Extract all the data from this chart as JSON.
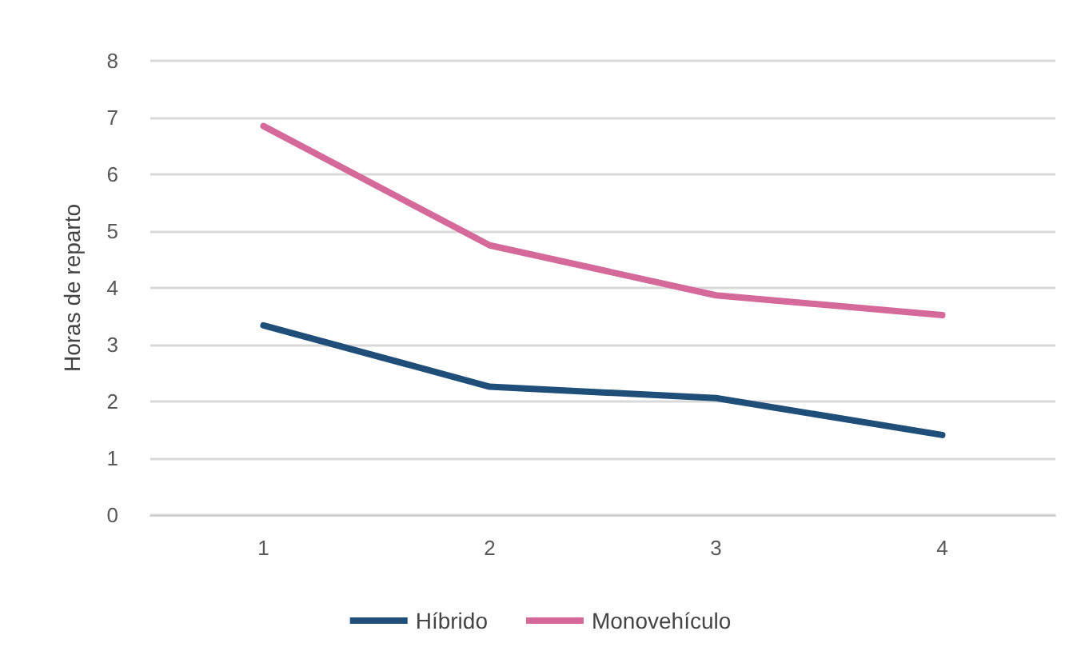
{
  "chart_data": {
    "type": "line",
    "ylabel": "Horas de reparto",
    "categories": [
      "1",
      "2",
      "3",
      "4"
    ],
    "series": [
      {
        "name": "Híbrido",
        "color": "#1f4e79",
        "values": [
          3.34,
          2.26,
          2.06,
          1.41
        ]
      },
      {
        "name": "Monovehículo",
        "color": "#d4699a",
        "values": [
          6.85,
          4.75,
          3.87,
          3.52
        ]
      }
    ],
    "ylim": [
      0,
      8
    ],
    "yticks": [
      0,
      1,
      2,
      3,
      4,
      5,
      6,
      7,
      8
    ],
    "grid": "y",
    "legend": "bottom",
    "marker": "none",
    "line_style": "solid"
  }
}
